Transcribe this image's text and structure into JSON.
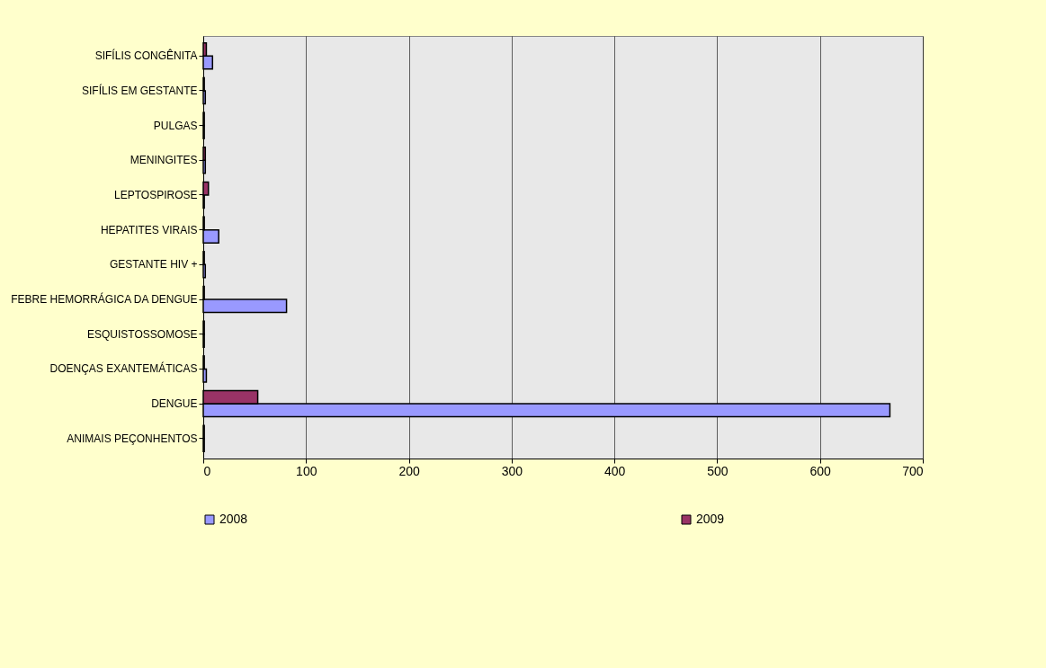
{
  "chart_data": {
    "type": "bar",
    "orientation": "horizontal",
    "categories": [
      "SIFÍLIS CONGÊNITA",
      "SIFÍLIS EM GESTANTE",
      "PULGAS",
      "MENINGITES",
      "LEPTOSPIROSE",
      "HEPATITES VIRAIS",
      "GESTANTE HIV +",
      "FEBRE HEMORRÁGICA DA DENGUE",
      "ESQUISTOSSOMOSE",
      "DOENÇAS EXANTEMÁTICAS",
      "DENGUE",
      "ANIMAIS PEÇONHENTOS"
    ],
    "series": [
      {
        "name": "2008",
        "color": "#9999ff",
        "values": [
          9,
          2,
          1,
          2,
          1,
          15,
          2,
          81,
          1,
          3,
          668,
          1
        ]
      },
      {
        "name": "2009",
        "color": "#993366",
        "values": [
          3,
          1,
          1,
          2,
          5,
          1,
          1,
          1,
          1,
          1,
          53,
          1
        ]
      }
    ],
    "xlim": [
      0,
      700
    ],
    "xticks": [
      0,
      100,
      200,
      300,
      400,
      500,
      600,
      700
    ],
    "grid": "x",
    "legend": "bottom"
  }
}
